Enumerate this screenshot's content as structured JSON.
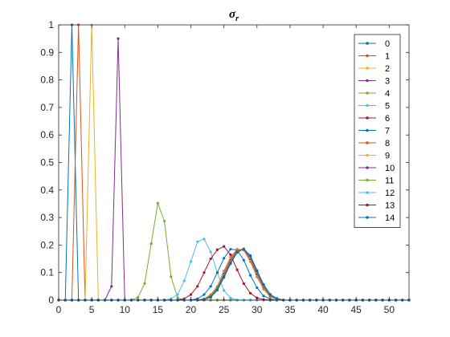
{
  "chart_data": {
    "type": "line",
    "title": "σ",
    "title_subscript": "r",
    "xlabel": "",
    "ylabel": "",
    "xlim": [
      0,
      53
    ],
    "ylim": [
      0,
      1
    ],
    "xticks": [
      0,
      5,
      10,
      15,
      20,
      25,
      30,
      35,
      40,
      45,
      50
    ],
    "yticks": [
      0,
      0.1,
      0.2,
      0.3,
      0.4,
      0.5,
      0.6,
      0.7,
      0.8,
      0.9,
      1
    ],
    "ytick_labels": [
      "0",
      "0.1",
      "0.2",
      "0.3",
      "0.4",
      "0.5",
      "0.6",
      "0.7",
      "0.8",
      "0.9",
      "1"
    ],
    "grid": false,
    "legend_position": "top-right",
    "marker": "dot",
    "x": [
      0,
      1,
      2,
      3,
      4,
      5,
      6,
      7,
      8,
      9,
      10,
      11,
      12,
      13,
      14,
      15,
      16,
      17,
      18,
      19,
      20,
      21,
      22,
      23,
      24,
      25,
      26,
      27,
      28,
      29,
      30,
      31,
      32,
      33,
      34,
      35,
      36,
      37,
      38,
      39,
      40,
      41,
      42,
      43,
      44,
      45,
      46,
      47,
      48,
      49,
      50,
      51,
      52,
      53
    ],
    "series": [
      {
        "name": "0",
        "color": "#0072BD",
        "values": [
          0,
          0,
          1,
          0,
          0,
          0,
          0,
          0,
          0,
          0,
          0,
          0,
          0,
          0,
          0,
          0,
          0,
          0,
          0,
          0,
          0,
          0,
          0,
          0,
          0,
          0,
          0,
          0,
          0,
          0,
          0,
          0,
          0,
          0,
          0,
          0,
          0,
          0,
          0,
          0,
          0,
          0,
          0,
          0,
          0,
          0,
          0,
          0,
          0,
          0,
          0,
          0,
          0,
          0
        ]
      },
      {
        "name": "1",
        "color": "#D95319",
        "values": [
          0,
          0,
          0,
          1,
          0,
          0,
          0,
          0,
          0,
          0,
          0,
          0,
          0,
          0,
          0,
          0,
          0,
          0,
          0,
          0,
          0,
          0,
          0,
          0,
          0,
          0,
          0,
          0,
          0,
          0,
          0,
          0,
          0,
          0,
          0,
          0,
          0,
          0,
          0,
          0,
          0,
          0,
          0,
          0,
          0,
          0,
          0,
          0,
          0,
          0,
          0,
          0,
          0,
          0
        ]
      },
      {
        "name": "2",
        "color": "#EDB120",
        "values": [
          0,
          0,
          0,
          0,
          0,
          1,
          0,
          0,
          0,
          0,
          0,
          0,
          0,
          0,
          0,
          0,
          0,
          0,
          0,
          0,
          0,
          0,
          0,
          0,
          0,
          0,
          0,
          0,
          0,
          0,
          0,
          0,
          0,
          0,
          0,
          0,
          0,
          0,
          0,
          0,
          0,
          0,
          0,
          0,
          0,
          0,
          0,
          0,
          0,
          0,
          0,
          0,
          0,
          0
        ]
      },
      {
        "name": "3",
        "color": "#7E2F8E",
        "values": [
          0,
          0,
          0,
          0,
          0,
          0,
          0,
          0,
          0.05,
          0.95,
          0,
          0,
          0,
          0,
          0,
          0,
          0,
          0,
          0,
          0,
          0,
          0,
          0,
          0,
          0,
          0,
          0,
          0,
          0,
          0,
          0,
          0,
          0,
          0,
          0,
          0,
          0,
          0,
          0,
          0,
          0,
          0,
          0,
          0,
          0,
          0,
          0,
          0,
          0,
          0,
          0,
          0,
          0,
          0
        ]
      },
      {
        "name": "4",
        "color": "#77AC30",
        "values": [
          0,
          0,
          0,
          0,
          0,
          0,
          0,
          0,
          0,
          0,
          0,
          0,
          0.01,
          0.06,
          0.205,
          0.352,
          0.287,
          0.085,
          0.008,
          0,
          0,
          0,
          0,
          0,
          0,
          0,
          0,
          0,
          0,
          0,
          0,
          0,
          0,
          0,
          0,
          0,
          0,
          0,
          0,
          0,
          0,
          0,
          0,
          0,
          0,
          0,
          0,
          0,
          0,
          0,
          0,
          0,
          0,
          0
        ]
      },
      {
        "name": "5",
        "color": "#4DBEEE",
        "values": [
          0,
          0,
          0,
          0,
          0,
          0,
          0,
          0,
          0,
          0,
          0,
          0,
          0,
          0,
          0,
          0,
          0,
          0.005,
          0.02,
          0.07,
          0.14,
          0.212,
          0.222,
          0.175,
          0.1,
          0.035,
          0.008,
          0,
          0,
          0,
          0,
          0,
          0,
          0,
          0,
          0,
          0,
          0,
          0,
          0,
          0,
          0,
          0,
          0,
          0,
          0,
          0,
          0,
          0,
          0,
          0,
          0,
          0,
          0
        ]
      },
      {
        "name": "6",
        "color": "#A2142F",
        "values": [
          0,
          0,
          0,
          0,
          0,
          0,
          0,
          0,
          0,
          0,
          0,
          0,
          0,
          0,
          0,
          0,
          0,
          0,
          0,
          0.005,
          0.02,
          0.05,
          0.1,
          0.15,
          0.183,
          0.195,
          0.165,
          0.11,
          0.06,
          0.025,
          0.008,
          0.002,
          0,
          0,
          0,
          0,
          0,
          0,
          0,
          0,
          0,
          0,
          0,
          0,
          0,
          0,
          0,
          0,
          0,
          0,
          0,
          0,
          0,
          0
        ]
      },
      {
        "name": "7",
        "color": "#0072BD",
        "values": [
          0,
          0,
          0,
          0,
          0,
          0,
          0,
          0,
          0,
          0,
          0,
          0,
          0,
          0,
          0,
          0,
          0,
          0,
          0,
          0,
          0,
          0.005,
          0.02,
          0.05,
          0.1,
          0.152,
          0.185,
          0.182,
          0.145,
          0.09,
          0.045,
          0.015,
          0.004,
          0,
          0,
          0,
          0,
          0,
          0,
          0,
          0,
          0,
          0,
          0,
          0,
          0,
          0,
          0,
          0,
          0,
          0,
          0,
          0,
          0
        ]
      },
      {
        "name": "8",
        "color": "#D95319",
        "values": [
          0,
          0,
          0,
          0,
          0,
          0,
          0,
          0,
          0,
          0,
          0,
          0,
          0,
          0,
          0,
          0,
          0,
          0,
          0,
          0,
          0,
          0,
          0.005,
          0.02,
          0.05,
          0.105,
          0.155,
          0.185,
          0.182,
          0.14,
          0.085,
          0.04,
          0.012,
          0.003,
          0,
          0,
          0,
          0,
          0,
          0,
          0,
          0,
          0,
          0,
          0,
          0,
          0,
          0,
          0,
          0,
          0,
          0,
          0,
          0
        ]
      },
      {
        "name": "9",
        "color": "#EDB120",
        "values": [
          0,
          0,
          0,
          0,
          0,
          0,
          0,
          0,
          0,
          0,
          0,
          0,
          0,
          0,
          0,
          0,
          0,
          0,
          0,
          0,
          0,
          0,
          0.004,
          0.018,
          0.05,
          0.1,
          0.15,
          0.183,
          0.185,
          0.145,
          0.09,
          0.043,
          0.014,
          0.003,
          0,
          0,
          0,
          0,
          0,
          0,
          0,
          0,
          0,
          0,
          0,
          0,
          0,
          0,
          0,
          0,
          0,
          0,
          0,
          0
        ]
      },
      {
        "name": "10",
        "color": "#7E2F8E",
        "values": [
          0,
          0,
          0,
          0,
          0,
          0,
          0,
          0,
          0,
          0,
          0,
          0,
          0,
          0,
          0,
          0,
          0,
          0,
          0,
          0,
          0,
          0,
          0.003,
          0.015,
          0.045,
          0.095,
          0.145,
          0.18,
          0.185,
          0.15,
          0.095,
          0.047,
          0.016,
          0.004,
          0,
          0,
          0,
          0,
          0,
          0,
          0,
          0,
          0,
          0,
          0,
          0,
          0,
          0,
          0,
          0,
          0,
          0,
          0,
          0
        ]
      },
      {
        "name": "11",
        "color": "#77AC30",
        "values": [
          0,
          0,
          0,
          0,
          0,
          0,
          0,
          0,
          0,
          0,
          0,
          0,
          0,
          0,
          0,
          0,
          0,
          0,
          0,
          0,
          0,
          0,
          0.003,
          0.013,
          0.042,
          0.09,
          0.14,
          0.178,
          0.186,
          0.155,
          0.1,
          0.05,
          0.018,
          0.005,
          0,
          0,
          0,
          0,
          0,
          0,
          0,
          0,
          0,
          0,
          0,
          0,
          0,
          0,
          0,
          0,
          0,
          0,
          0,
          0
        ]
      },
      {
        "name": "12",
        "color": "#4DBEEE",
        "values": [
          0,
          0,
          0,
          0,
          0,
          0,
          0,
          0,
          0,
          0,
          0,
          0,
          0,
          0,
          0,
          0,
          0,
          0,
          0,
          0,
          0,
          0,
          0.002,
          0.012,
          0.04,
          0.087,
          0.137,
          0.176,
          0.186,
          0.158,
          0.103,
          0.053,
          0.019,
          0.005,
          0,
          0,
          0,
          0,
          0,
          0,
          0,
          0,
          0,
          0,
          0,
          0,
          0,
          0,
          0,
          0,
          0,
          0,
          0,
          0
        ]
      },
      {
        "name": "13",
        "color": "#A2142F",
        "values": [
          0,
          0,
          0,
          0,
          0,
          0,
          0,
          0,
          0,
          0,
          0,
          0,
          0,
          0,
          0,
          0,
          0,
          0,
          0,
          0,
          0,
          0,
          0.002,
          0.011,
          0.038,
          0.085,
          0.135,
          0.175,
          0.186,
          0.16,
          0.105,
          0.055,
          0.02,
          0.006,
          0,
          0,
          0,
          0,
          0,
          0,
          0,
          0,
          0,
          0,
          0,
          0,
          0,
          0,
          0,
          0,
          0,
          0,
          0,
          0
        ]
      },
      {
        "name": "14",
        "color": "#0072BD",
        "values": [
          0,
          0,
          0,
          0,
          0,
          0,
          0,
          0,
          0,
          0,
          0,
          0,
          0,
          0,
          0,
          0,
          0,
          0,
          0,
          0,
          0,
          0,
          0.002,
          0.01,
          0.036,
          0.082,
          0.132,
          0.173,
          0.186,
          0.162,
          0.108,
          0.057,
          0.021,
          0.006,
          0,
          0,
          0,
          0,
          0,
          0,
          0,
          0,
          0,
          0,
          0,
          0,
          0,
          0,
          0,
          0,
          0,
          0,
          0,
          0
        ]
      }
    ]
  }
}
